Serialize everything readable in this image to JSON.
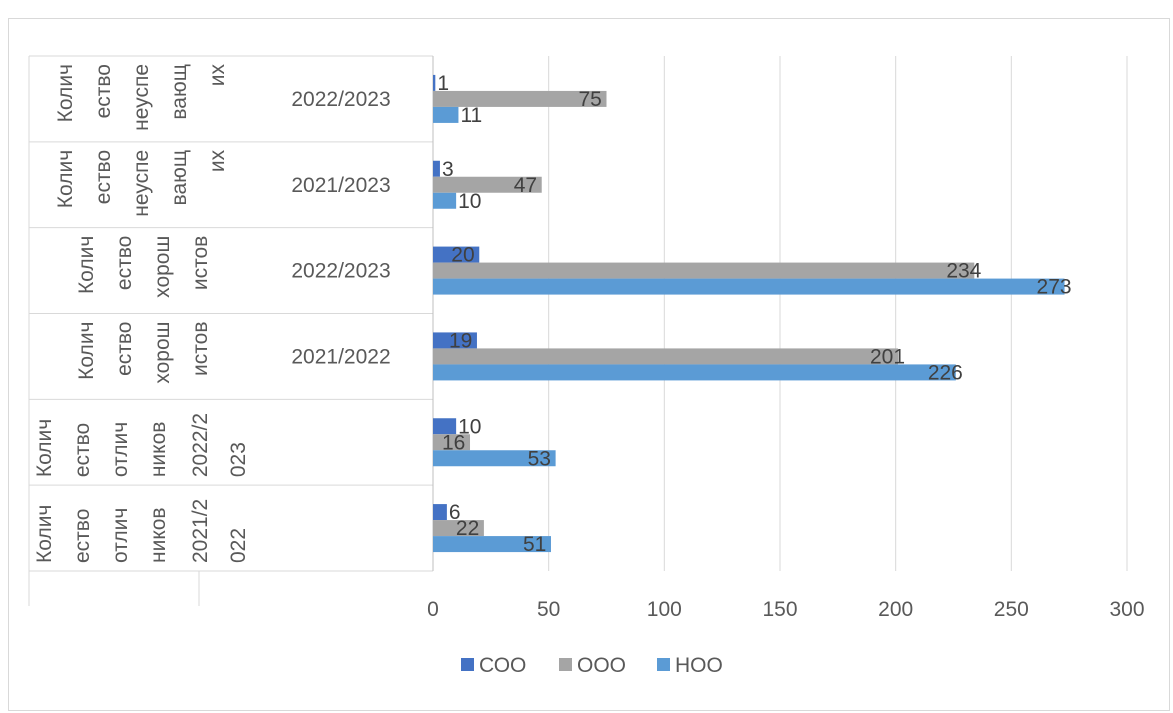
{
  "chart_data": {
    "type": "bar",
    "orientation": "horizontal",
    "categories": [
      [
        "Колич ество отлич ников",
        "2021/2 022",
        ""
      ],
      [
        "Колич ество отлич ников",
        "2022/2 023",
        ""
      ],
      [
        "Колич ество хорош истов",
        "",
        "2021/2022"
      ],
      [
        "Колич ество хорош истов",
        "",
        "2022/2023"
      ],
      [
        "Колич ество неуспе вающ их",
        "",
        "2021/2023"
      ],
      [
        "Колич ество неуспе вающ их",
        "",
        "2022/2023"
      ]
    ],
    "category_text": {
      "row0": {
        "group": [
          "Колич",
          "ество",
          "отлич",
          "ников"
        ],
        "year": [
          "2021/2",
          "022"
        ],
        "label": ""
      },
      "row1": {
        "group": [
          "Колич",
          "ество",
          "отлич",
          "ников"
        ],
        "year": [
          "2022/2",
          "023"
        ],
        "label": ""
      },
      "row2": {
        "group": [
          "Колич",
          "ество",
          "хорош",
          "истов"
        ],
        "year": [],
        "label": "2021/2022"
      },
      "row3": {
        "group": [
          "Колич",
          "ество",
          "хорош",
          "истов"
        ],
        "year": [],
        "label": "2022/2023"
      },
      "row4": {
        "group": [
          "Колич",
          "ество",
          "неуспе",
          "вающ",
          "их"
        ],
        "year": [],
        "label": "2021/2023"
      },
      "row5": {
        "group": [
          "Колич",
          "ество",
          "неуспе",
          "вающ",
          "их"
        ],
        "year": [],
        "label": "2022/2023"
      }
    },
    "series": [
      {
        "name": "СОО",
        "color": "#4472c4",
        "values": [
          6,
          10,
          19,
          20,
          3,
          1
        ]
      },
      {
        "name": "ООО",
        "color": "#a5a5a5",
        "values": [
          22,
          16,
          201,
          234,
          47,
          75
        ]
      },
      {
        "name": "НОО",
        "color": "#5b9bd5",
        "values": [
          51,
          53,
          226,
          273,
          10,
          11
        ]
      }
    ],
    "xlim": [
      0,
      300
    ],
    "xticks": [
      "0",
      "50",
      "100",
      "150",
      "200",
      "250",
      "300"
    ],
    "grid": true,
    "legend_position": "bottom",
    "title": "",
    "xlabel": "",
    "ylabel": ""
  }
}
